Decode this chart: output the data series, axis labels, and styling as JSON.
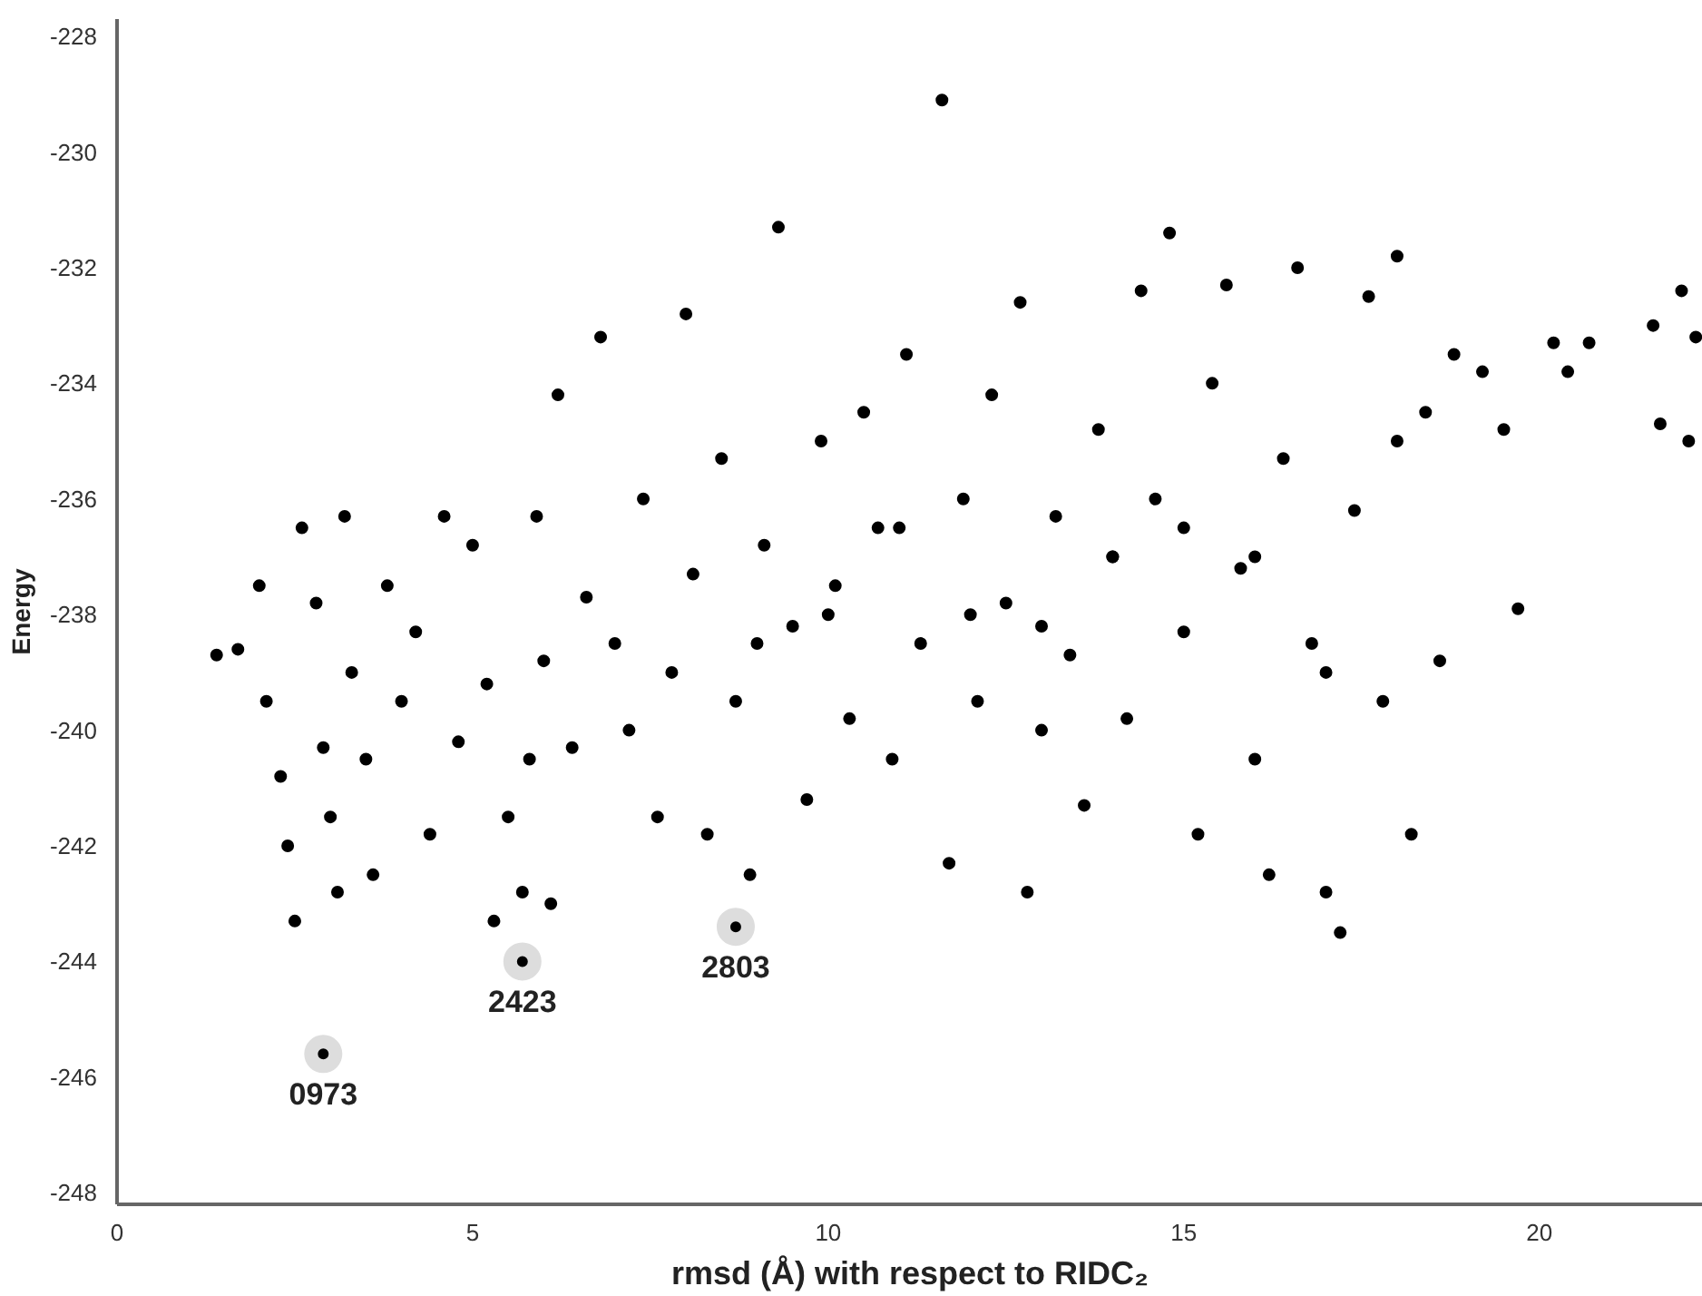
{
  "chart_data": {
    "type": "scatter",
    "xlabel": "rmsd (Å) with respect to RIDC₂",
    "ylabel": "Energy",
    "xlim": [
      0,
      22.3
    ],
    "ylim": [
      -248.2,
      -227.7
    ],
    "xticks": [
      0,
      5,
      10,
      15,
      20
    ],
    "yticks": [
      -248,
      -246,
      -244,
      -242,
      -240,
      -238,
      -236,
      -234,
      -232,
      -230,
      -228
    ],
    "grid": false,
    "marker": "circle",
    "series": [
      {
        "color": "#000000",
        "x": [
          1.4,
          1.7,
          2.0,
          2.1,
          2.3,
          2.4,
          2.5,
          2.6,
          2.8,
          2.9,
          3.0,
          3.1,
          3.2,
          3.3,
          3.5,
          3.6,
          3.8,
          4.0,
          4.2,
          4.4,
          4.6,
          4.8,
          5.0,
          5.2,
          5.3,
          5.5,
          5.7,
          5.8,
          5.9,
          6.0,
          6.1,
          6.2,
          6.4,
          6.6,
          6.8,
          7.0,
          7.2,
          7.4,
          7.6,
          7.8,
          8.0,
          8.1,
          8.3,
          8.5,
          8.7,
          8.9,
          9.1,
          9.3,
          9.5,
          9.7,
          9.9,
          10.1,
          10.3,
          10.5,
          10.7,
          10.9,
          11.1,
          11.3,
          11.6,
          11.7,
          11.9,
          12.1,
          12.3,
          12.5,
          12.7,
          12.8,
          13.0,
          13.2,
          13.4,
          13.6,
          13.8,
          14.0,
          14.2,
          14.4,
          14.6,
          14.8,
          15.0,
          15.2,
          15.4,
          15.6,
          15.8,
          16.0,
          16.2,
          16.4,
          16.6,
          16.8,
          17.0,
          17.2,
          17.4,
          17.6,
          17.8,
          18.0,
          18.2,
          18.4,
          18.6,
          18.8,
          19.2,
          19.5,
          19.7,
          20.2,
          20.4,
          20.7,
          21.6,
          21.7,
          22.0,
          22.1,
          22.2,
          10.0,
          12.0,
          14.0,
          16.0,
          9.0,
          11.0,
          13.0,
          15.0,
          17.0,
          18.0
        ],
        "values": [
          -238.7,
          -238.6,
          -237.5,
          -239.5,
          -240.8,
          -242.0,
          -243.3,
          -236.5,
          -237.8,
          -240.3,
          -241.5,
          -242.8,
          -236.3,
          -239.0,
          -240.5,
          -242.5,
          -237.5,
          -239.5,
          -238.3,
          -241.8,
          -236.3,
          -240.2,
          -236.8,
          -239.2,
          -243.3,
          -241.5,
          -242.8,
          -240.5,
          -236.3,
          -238.8,
          -243.0,
          -234.2,
          -240.3,
          -237.7,
          -233.2,
          -238.5,
          -240.0,
          -236.0,
          -241.5,
          -239.0,
          -232.8,
          -237.3,
          -241.8,
          -235.3,
          -239.5,
          -242.5,
          -236.8,
          -231.3,
          -238.2,
          -241.2,
          -235.0,
          -237.5,
          -239.8,
          -234.5,
          -236.5,
          -240.5,
          -233.5,
          -238.5,
          -229.1,
          -242.3,
          -236.0,
          -239.5,
          -234.2,
          -237.8,
          -232.6,
          -242.8,
          -240.0,
          -236.3,
          -238.7,
          -241.3,
          -234.8,
          -237.0,
          -239.8,
          -232.4,
          -236.0,
          -231.4,
          -238.3,
          -241.8,
          -234.0,
          -232.3,
          -237.2,
          -240.5,
          -242.5,
          -235.3,
          -232.0,
          -238.5,
          -242.8,
          -243.5,
          -236.2,
          -232.5,
          -239.5,
          -231.8,
          -241.8,
          -234.5,
          -238.8,
          -233.5,
          -233.8,
          -234.8,
          -237.9,
          -233.3,
          -233.8,
          -233.3,
          -233.0,
          -234.7,
          -232.4,
          -235.0,
          -233.2,
          -238.0,
          -238.0,
          -237.0,
          -237.0,
          -238.5,
          -236.5,
          -238.2,
          -236.5,
          -239.0,
          -235.0
        ]
      }
    ],
    "annotations": [
      {
        "text": "0973",
        "x": 2.9,
        "y": -245.6
      },
      {
        "text": "2423",
        "x": 5.7,
        "y": -244.0
      },
      {
        "text": "2803",
        "x": 8.7,
        "y": -243.4
      }
    ]
  }
}
